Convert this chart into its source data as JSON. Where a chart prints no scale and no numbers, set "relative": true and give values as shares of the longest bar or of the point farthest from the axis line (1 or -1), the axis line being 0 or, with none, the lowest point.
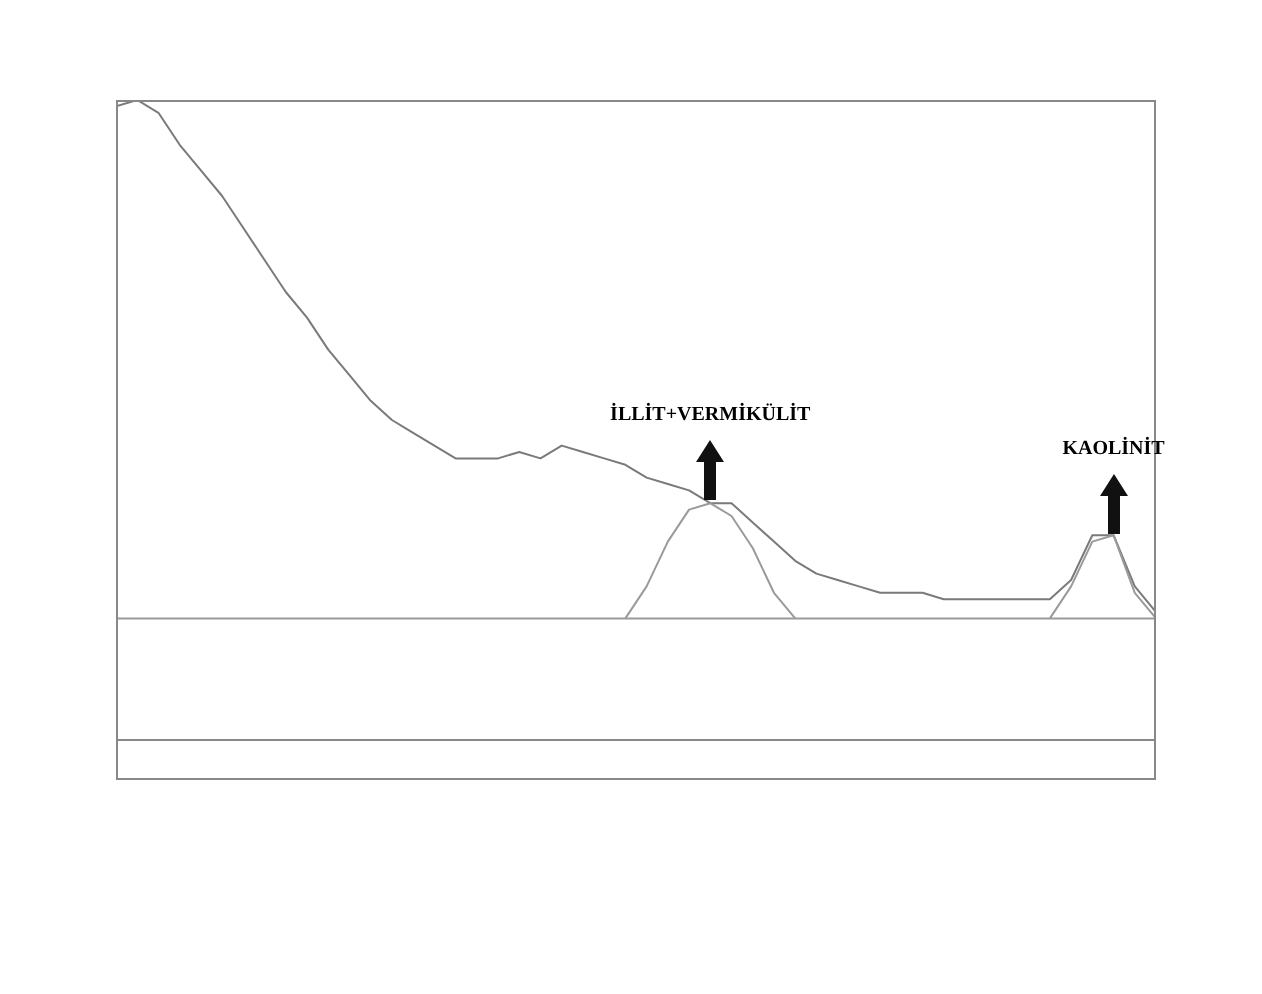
{
  "chart_data": {
    "type": "line",
    "relative": true,
    "marker": "none",
    "line_style": "solid",
    "categories": [
      null,
      null,
      null,
      null,
      null,
      null,
      null,
      null,
      null,
      null,
      null,
      null,
      null,
      null,
      null,
      null,
      null,
      null,
      null,
      null,
      null,
      null,
      null,
      null,
      null,
      null,
      null,
      null,
      null,
      null,
      null,
      null,
      null,
      null,
      null,
      null,
      null,
      null,
      null,
      null,
      null,
      null,
      null,
      null,
      null,
      null,
      null,
      null,
      null,
      null
    ],
    "series": [
      {
        "color": "#7a7a7a",
        "values": [
          0.99,
          1.0,
          0.98,
          0.93,
          0.89,
          0.85,
          0.8,
          0.75,
          0.7,
          0.66,
          0.61,
          0.57,
          0.53,
          0.5,
          0.48,
          0.46,
          0.44,
          0.44,
          0.44,
          0.45,
          0.44,
          0.46,
          0.45,
          0.44,
          0.43,
          0.41,
          0.4,
          0.39,
          0.37,
          0.37,
          0.34,
          0.31,
          0.28,
          0.26,
          0.25,
          0.24,
          0.23,
          0.23,
          0.23,
          0.22,
          0.22,
          0.22,
          0.22,
          0.22,
          0.22,
          0.25,
          0.32,
          0.32,
          0.24,
          0.2
        ]
      },
      {
        "color": "#9a9a9a",
        "values": [
          null,
          null,
          null,
          null,
          null,
          null,
          null,
          null,
          null,
          null,
          null,
          null,
          null,
          null,
          null,
          null,
          null,
          null,
          null,
          null,
          null,
          null,
          null,
          null,
          0.19,
          0.24,
          0.31,
          0.36,
          0.37,
          0.35,
          0.3,
          0.23,
          0.19,
          null,
          null,
          null,
          null,
          null,
          null,
          null,
          null,
          null,
          null,
          null,
          null,
          null,
          null,
          null,
          null,
          null
        ]
      },
      {
        "color": "#9a9a9a",
        "values": [
          null,
          null,
          null,
          null,
          null,
          null,
          null,
          null,
          null,
          null,
          null,
          null,
          null,
          null,
          null,
          null,
          null,
          null,
          null,
          null,
          null,
          null,
          null,
          null,
          null,
          null,
          null,
          null,
          null,
          null,
          null,
          null,
          null,
          null,
          null,
          null,
          null,
          null,
          null,
          null,
          null,
          null,
          null,
          null,
          0.19,
          0.24,
          0.31,
          0.32,
          0.23,
          0.19
        ]
      }
    ],
    "ref_lines": [
      {
        "axis": "y",
        "value": 0.19,
        "color": "#9a9a9a"
      }
    ],
    "annotations": [
      "İLLİT+VERMİKÜLİT",
      "KAOLİNİT"
    ]
  }
}
